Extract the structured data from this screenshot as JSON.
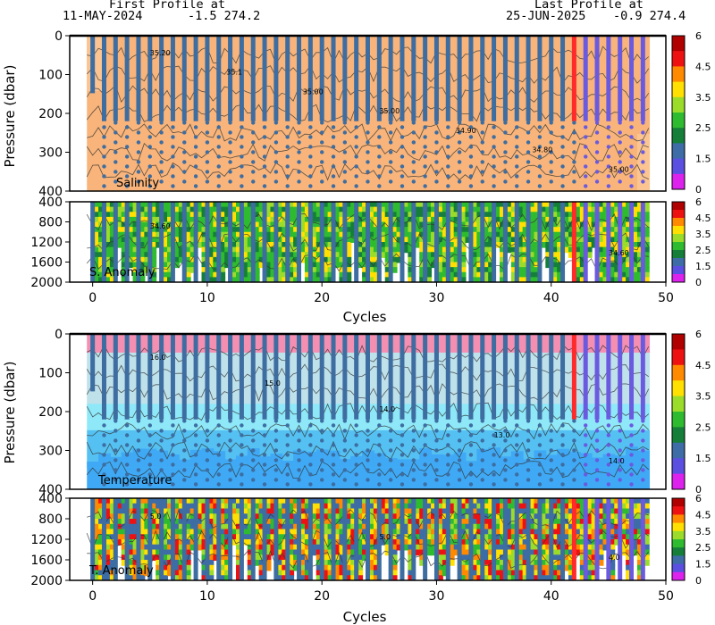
{
  "header": {
    "first_title": "First Profile at",
    "first_date": "11-MAY-2024",
    "first_coords": "-1.5 274.2",
    "last_title": "Last Profile at",
    "last_date": "25-JUN-2025",
    "last_coords": "-0.9 274.4"
  },
  "colors": {
    "salinity_bg": "#f8b47a",
    "salinity_bg_light": "#fbc491",
    "temp_top": "#f48fb1",
    "temp_mid": "#bfe1ea",
    "temp_cyan": "#8ee8f8",
    "temp_blue": "#3fa9f5",
    "profile_blue": "#3d6da1",
    "profile_red": "#ff2a2a",
    "profile_purple": "#6a5ae0",
    "dot_blue": "#3d6da1"
  },
  "chart_data": [
    {
      "type": "heatmap",
      "title": "Salinity",
      "ylabel": "Pressure (dbar)",
      "xlim": [
        -2,
        50
      ],
      "ylim": [
        400,
        0
      ],
      "yticks": [
        "0",
        "100",
        "200",
        "300",
        "400"
      ],
      "contour_labels": [
        "35.20",
        "35.1",
        "35.00",
        "35.00",
        "34.90",
        "34.80",
        "35.00"
      ],
      "profiles": {
        "count": 48,
        "red_cycle": 42,
        "purple_cycles": [
          43,
          44,
          45,
          46,
          47,
          48
        ]
      }
    },
    {
      "type": "heatmap",
      "title": "S. Anomaly",
      "ylim": [
        2000,
        400
      ],
      "yticks": [
        "400",
        "800",
        "1200",
        "1600",
        "2000"
      ],
      "contour_labels": [
        "34.60",
        "34.60"
      ]
    },
    {
      "type": "heatmap",
      "title": "Temperature",
      "ylabel": "Pressure (dbar)",
      "xlim": [
        -2,
        50
      ],
      "ylim": [
        400,
        0
      ],
      "yticks": [
        "0",
        "100",
        "200",
        "300",
        "400"
      ],
      "contour_labels": [
        "16.0",
        "15.0",
        "14.0",
        "13.0",
        "14.0"
      ]
    },
    {
      "type": "heatmap",
      "title": "T. Anomaly",
      "ylim": [
        2000,
        400
      ],
      "yticks": [
        "400",
        "800",
        "1200",
        "1600",
        "2000"
      ],
      "contour_labels": [
        "5.0",
        "5.0",
        "4.0"
      ]
    }
  ],
  "x_axis": {
    "label": "Cycles",
    "ticks": [
      "0",
      "10",
      "20",
      "30",
      "40",
      "50"
    ]
  },
  "colorbar": {
    "labels": [
      "6",
      "4.5",
      "3.5",
      "2.5",
      "1.5",
      "0"
    ],
    "colors": [
      "#b00000",
      "#ee1111",
      "#ff8a00",
      "#ffe000",
      "#9bdc2a",
      "#2fbb2f",
      "#157f3a",
      "#3d6ca7",
      "#5a4fe0",
      "#dd22ee"
    ]
  }
}
